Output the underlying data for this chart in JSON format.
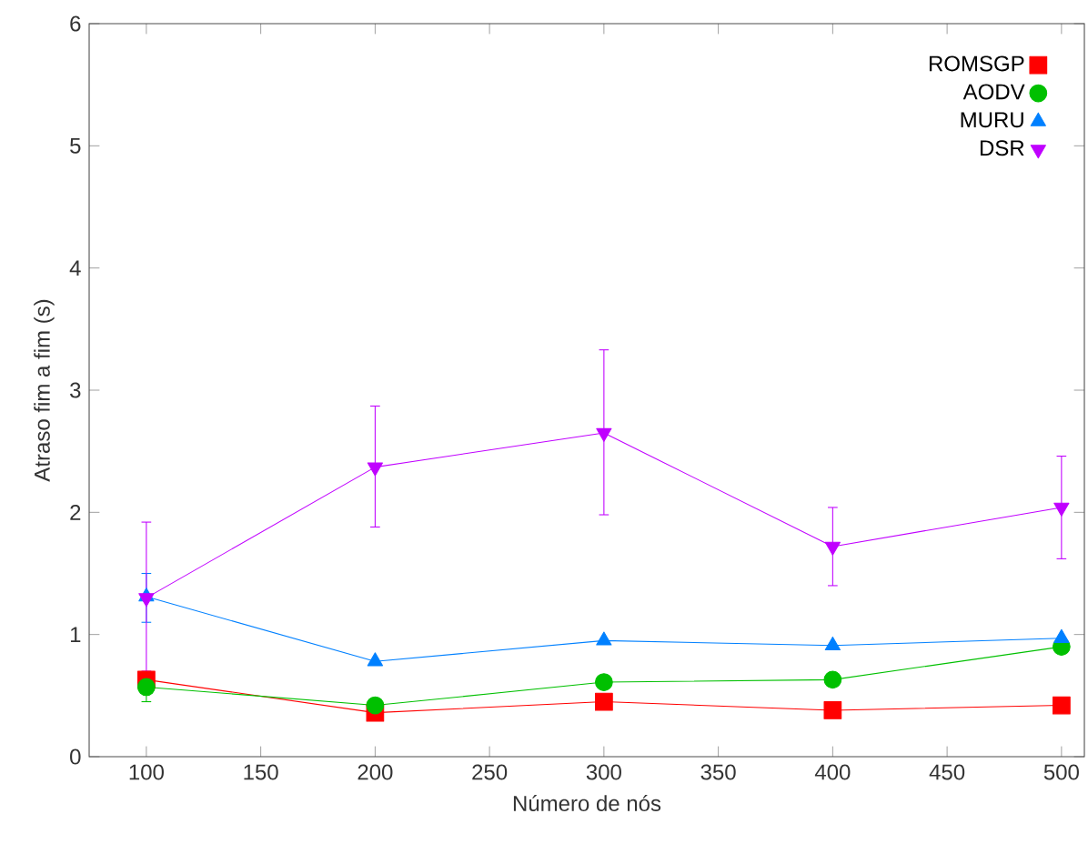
{
  "chart_data": {
    "type": "line",
    "xlabel": "Número de nós",
    "ylabel": "Atraso fim a fim (s)",
    "x": [
      100,
      200,
      300,
      400,
      500
    ],
    "xlim": [
      75,
      510
    ],
    "xticks": [
      100,
      150,
      200,
      250,
      300,
      350,
      400,
      450,
      500
    ],
    "ylim": [
      0,
      6
    ],
    "yticks": [
      0,
      1,
      2,
      3,
      4,
      5,
      6
    ],
    "legend": "top right",
    "grid": false,
    "line_style": "solid",
    "series": [
      {
        "name": "ROMSGP",
        "color": "#ff0000",
        "marker": "square",
        "values": [
          0.63,
          0.36,
          0.45,
          0.38,
          0.42
        ]
      },
      {
        "name": "AODV",
        "color": "#00c000",
        "marker": "circle",
        "values": [
          0.57,
          0.42,
          0.61,
          0.63,
          0.9
        ],
        "errors": [
          [
            0.45,
            0.67
          ],
          null,
          null,
          null,
          null
        ]
      },
      {
        "name": "MURU",
        "color": "#0080ff",
        "marker": "triangle",
        "values": [
          1.31,
          0.78,
          0.95,
          0.91,
          0.97
        ],
        "errors": [
          [
            1.1,
            1.5
          ],
          null,
          null,
          null,
          null
        ]
      },
      {
        "name": "DSR",
        "color": "#c000ff",
        "marker": "triangle down",
        "values": [
          1.3,
          2.37,
          2.65,
          1.72,
          2.04
        ],
        "errors": [
          [
            0.7,
            1.92
          ],
          [
            1.88,
            2.87
          ],
          [
            1.98,
            3.33
          ],
          [
            1.4,
            2.04
          ],
          [
            1.62,
            2.46
          ]
        ]
      }
    ]
  }
}
